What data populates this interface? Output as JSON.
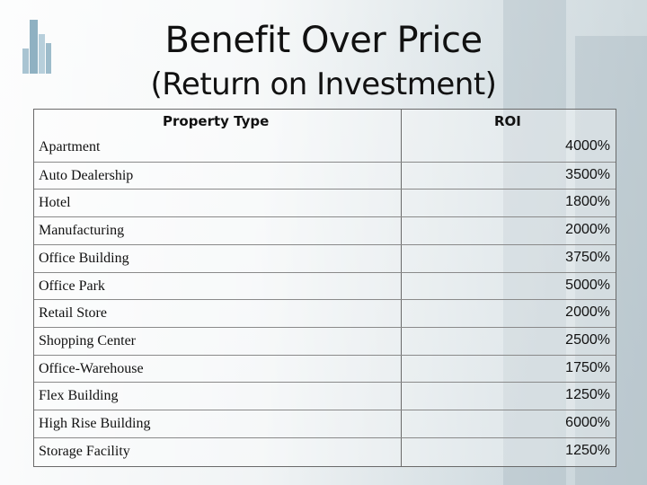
{
  "title": {
    "line1": "Benefit Over Price",
    "line2": "(Return on Investment)"
  },
  "table": {
    "headers": [
      "Property Type",
      "ROI"
    ],
    "rows": [
      {
        "property": "Apartment",
        "roi": "4000%"
      },
      {
        "property": "Auto Dealership",
        "roi": "3500%"
      },
      {
        "property": "Hotel",
        "roi": "1800%"
      },
      {
        "property": "Manufacturing",
        "roi": "2000%"
      },
      {
        "property": "Office Building",
        "roi": "3750%"
      },
      {
        "property": "Office Park",
        "roi": "5000%"
      },
      {
        "property": "Retail Store",
        "roi": "2000%"
      },
      {
        "property": "Shopping Center",
        "roi": "2500%"
      },
      {
        "property": "Office-Warehouse",
        "roi": "1750%"
      },
      {
        "property": "Flex Building",
        "roi": "1250%"
      },
      {
        "property": "High Rise Building",
        "roi": "6000%"
      },
      {
        "property": "Storage Facility",
        "roi": "1250%"
      }
    ]
  },
  "logo_icon": "building-bars-logo-icon"
}
